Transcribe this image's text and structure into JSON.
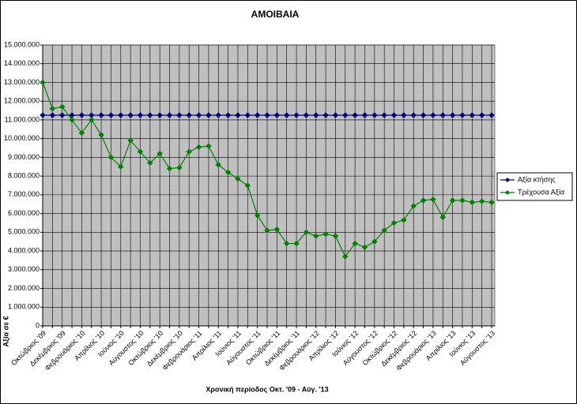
{
  "chart_data": {
    "type": "line",
    "title": "ΑΜΟΙΒΑΙΑ",
    "y_label": "Αξία σε €",
    "x_label": "Χρονική περίοδος Οκτ. '09 - Αύγ. '13",
    "categories": [
      "Οκτώβριος '09",
      null,
      "Δεκέμβριος '09",
      null,
      "Φεβρουάριος '10",
      null,
      "Απρίλιος '10",
      null,
      "Ιούνιος '10",
      null,
      "Αύγουστος '10",
      null,
      "Οκτώβριος '10",
      null,
      "Δεκέμβριος '10",
      null,
      "Φεβρουάριος '11",
      null,
      "Απρίλιος '11",
      null,
      "Ιούνιος '11",
      null,
      "Αύγουστος '11",
      null,
      "Οκτώβριος '11",
      null,
      "Δεκέμβριος '11",
      null,
      "Φεβρουάριος '12",
      null,
      "Απρίλιος '12",
      null,
      "Ιούνιος '12",
      null,
      "Αύγουστος '12",
      null,
      "Οκτώβριος '12",
      null,
      "Δεκέμβριος '12",
      null,
      "Φεβρουάριος '13",
      null,
      "Απρίλιος '13",
      null,
      "Ιούνιος '13",
      null,
      "Αύγουστος '13"
    ],
    "series": [
      {
        "name": "Αξία κτήσης",
        "color": "#000080",
        "values": [
          11250000,
          11250000,
          11250000,
          11250000,
          11250000,
          11250000,
          11250000,
          11250000,
          11250000,
          11250000,
          11250000,
          11250000,
          11250000,
          11250000,
          11250000,
          11250000,
          11250000,
          11250000,
          11250000,
          11250000,
          11250000,
          11250000,
          11250000,
          11250000,
          11250000,
          11250000,
          11250000,
          11250000,
          11250000,
          11250000,
          11250000,
          11250000,
          11250000,
          11250000,
          11250000,
          11250000,
          11250000,
          11250000,
          11250000,
          11250000,
          11250000,
          11250000,
          11250000,
          11250000,
          11250000,
          11250000,
          11250000
        ]
      },
      {
        "name": "Τρέχουσα Αξία",
        "color": "#008000",
        "values": [
          13000000,
          11600000,
          11700000,
          11000000,
          10300000,
          11000000,
          10200000,
          9000000,
          8500000,
          9900000,
          9300000,
          8700000,
          9200000,
          8400000,
          8450000,
          9300000,
          9550000,
          9600000,
          8600000,
          8200000,
          7850000,
          7500000,
          5900000,
          5100000,
          5150000,
          4400000,
          4400000,
          5000000,
          4800000,
          4900000,
          4800000,
          3700000,
          4400000,
          4200000,
          4500000,
          5100000,
          5500000,
          5650000,
          6400000,
          6700000,
          6750000,
          5800000,
          6700000,
          6700000,
          6600000,
          6650000,
          6600000
        ]
      }
    ],
    "ylim": [
      0,
      15000000
    ],
    "yticks": [
      0,
      {
        "value": 1000000,
        "label": "1.000.000"
      },
      {
        "value": 2000000,
        "label": "2.000.000"
      },
      {
        "value": 3000000,
        "label": "3.000.000"
      },
      {
        "value": 4000000,
        "label": "4.000.000"
      },
      {
        "value": 5000000,
        "label": "5.000.000"
      },
      {
        "value": 6000000,
        "label": "6.000.000"
      },
      {
        "value": 7000000,
        "label": "7.000.000"
      },
      {
        "value": 8000000,
        "label": "8.000.000"
      },
      {
        "value": 9000000,
        "label": "9.000.000"
      },
      {
        "value": 10000000,
        "label": "10.000.000"
      },
      {
        "value": 11000000,
        "label": "11.000.000"
      },
      {
        "value": 12000000,
        "label": "12.000.000"
      },
      {
        "value": 13000000,
        "label": "13.000.000"
      },
      {
        "value": 14000000,
        "label": "14.000.000"
      },
      {
        "value": 15000000,
        "label": "15.000.000"
      }
    ],
    "grid": true,
    "legend": "right"
  }
}
